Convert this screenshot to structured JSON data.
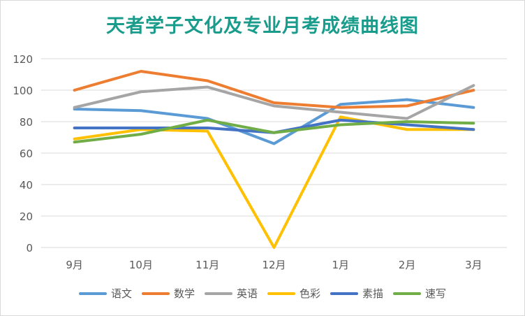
{
  "chart_data": {
    "type": "line",
    "title": "天者学子文化及专业月考成绩曲线图",
    "categories": [
      "9月",
      "10月",
      "11月",
      "12月",
      "1月",
      "2月",
      "3月"
    ],
    "ylim": [
      0,
      120
    ],
    "yticks": [
      "0",
      "20",
      "40",
      "60",
      "80",
      "100",
      "120"
    ],
    "grid": true,
    "legend_position": "bottom",
    "series": [
      {
        "name": "语文",
        "color": "#5b9bd5",
        "values": [
          88,
          87,
          82,
          66,
          91,
          94,
          89
        ]
      },
      {
        "name": "数学",
        "color": "#ed7d31",
        "values": [
          100,
          112,
          106,
          92,
          89,
          90,
          100
        ]
      },
      {
        "name": "英语",
        "color": "#a5a5a5",
        "values": [
          89,
          99,
          102,
          90,
          86,
          82,
          103
        ]
      },
      {
        "name": "色彩",
        "color": "#ffc000",
        "values": [
          69,
          75,
          74,
          0,
          83,
          75,
          75
        ]
      },
      {
        "name": "素描",
        "color": "#4472c4",
        "values": [
          76,
          76,
          76,
          73,
          81,
          78,
          75
        ]
      },
      {
        "name": "速写",
        "color": "#70ad47",
        "values": [
          67,
          72,
          81,
          73,
          78,
          80,
          79
        ]
      }
    ]
  }
}
